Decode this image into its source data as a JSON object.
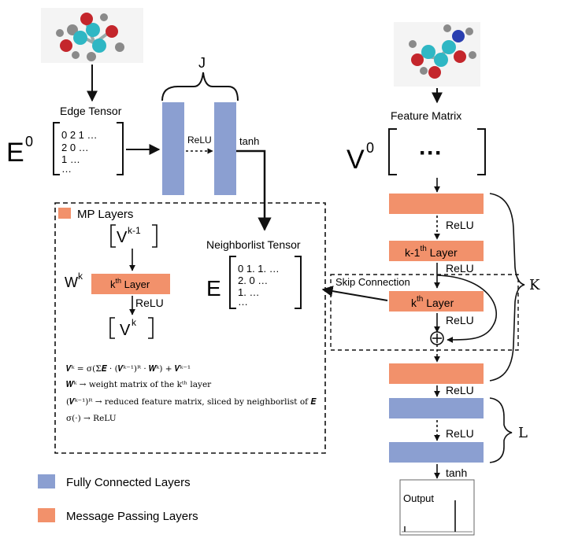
{
  "colors": {
    "fc": "#8b9fd1",
    "mp": "#f2916b",
    "line": "#111111",
    "mol_teal": "#2fb7c4",
    "mol_red": "#c4262c",
    "mol_grey": "#8a8a8a",
    "mol_blue": "#2a3fb0"
  },
  "icons": [
    "molecule-icon-left",
    "molecule-icon-right",
    "plus-circle-icon"
  ],
  "left": {
    "edge_tensor_label": "Edge Tensor",
    "e0_symbol": "E",
    "e0_sup": "0",
    "edge_rows": [
      "0 2 1  …",
      "2 0 …",
      "1 …",
      "…"
    ],
    "J_label": "J",
    "relu": "ReLU",
    "tanh": "tanh"
  },
  "mp_box": {
    "legend_label": "MP Layers",
    "vk1_text": "V",
    "vk1_sup": "k-1",
    "wk_text": "W",
    "wk_sup": "k",
    "kth_layer_pre": "k",
    "kth_layer_sup": "th",
    "kth_layer_post": " Layer",
    "relu": "ReLU",
    "vk_text": "V",
    "vk_sup": "k",
    "neighborlist_label": "Neighborlist Tensor",
    "e_symbol": "E",
    "nl_rows": [
      "0 1. 1.  …",
      "2. 0 …",
      "1. …",
      "…"
    ],
    "eq1": "𝑽ᵏ =  σ(Σ𝑬 · (𝑽ᵏ⁻¹)ᴿ · 𝑾ᵏ) + 𝑽ᵏ⁻¹",
    "eq2": "𝑾ᵏ → weight matrix of the kᵗʰ layer",
    "eq3": "(𝑽ᵏ⁻¹)ᴿ → reduced  feature matrix, sliced by neighborlist of 𝑬",
    "eq4": "σ(·) → ReLU"
  },
  "right": {
    "feature_matrix_label": "Feature Matrix",
    "v0_symbol": "V",
    "v0_sup": "0",
    "dots": "···",
    "relu1": "ReLU",
    "k1_layer_pre": "k-1",
    "k1_layer_sup": "th",
    "k1_layer_post": " Layer",
    "relu2": "ReLU",
    "skip_label": "Skip Connection",
    "k_layer_pre": "k",
    "k_layer_sup": "th",
    "k_layer_post": " Layer",
    "relu3": "ReLU",
    "K_label": "K",
    "relu4": "ReLU",
    "relu5": "ReLU",
    "L_label": "L",
    "tanh": "tanh",
    "output_label": "Output"
  },
  "legend": {
    "fc_label": "Fully Connected Layers",
    "mp_label": "Message Passing Layers"
  }
}
